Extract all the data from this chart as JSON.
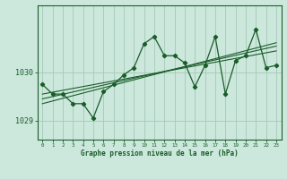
{
  "background_color": "#cce8dc",
  "plot_bg_color": "#cce8dc",
  "grid_color": "#aaccbb",
  "line_color": "#1a5c2a",
  "xlim": [
    -0.5,
    23.5
  ],
  "ylim": [
    1028.6,
    1031.4
  ],
  "yticks": [
    1029,
    1030
  ],
  "xticks": [
    0,
    1,
    2,
    3,
    4,
    5,
    6,
    7,
    8,
    9,
    10,
    11,
    12,
    13,
    14,
    15,
    16,
    17,
    18,
    19,
    20,
    21,
    22,
    23
  ],
  "xlabel": "Graphe pression niveau de la mer (hPa)",
  "main_x": [
    0,
    1,
    2,
    3,
    4,
    5,
    6,
    7,
    8,
    9,
    10,
    11,
    12,
    13,
    14,
    15,
    16,
    17,
    18,
    19,
    20,
    21,
    22,
    23
  ],
  "main_y": [
    1029.75,
    1029.55,
    1029.55,
    1029.35,
    1029.35,
    1029.05,
    1029.6,
    1029.75,
    1029.95,
    1030.1,
    1030.6,
    1030.75,
    1030.35,
    1030.35,
    1030.2,
    1029.7,
    1030.15,
    1030.75,
    1029.55,
    1030.25,
    1030.35,
    1030.9,
    1030.1,
    1030.15
  ],
  "trend1_x": [
    0,
    23
  ],
  "trend1_y": [
    1029.55,
    1030.45
  ],
  "trend2_x": [
    0,
    23
  ],
  "trend2_y": [
    1029.45,
    1030.55
  ],
  "trend3_x": [
    0,
    23
  ],
  "trend3_y": [
    1029.35,
    1030.62
  ]
}
